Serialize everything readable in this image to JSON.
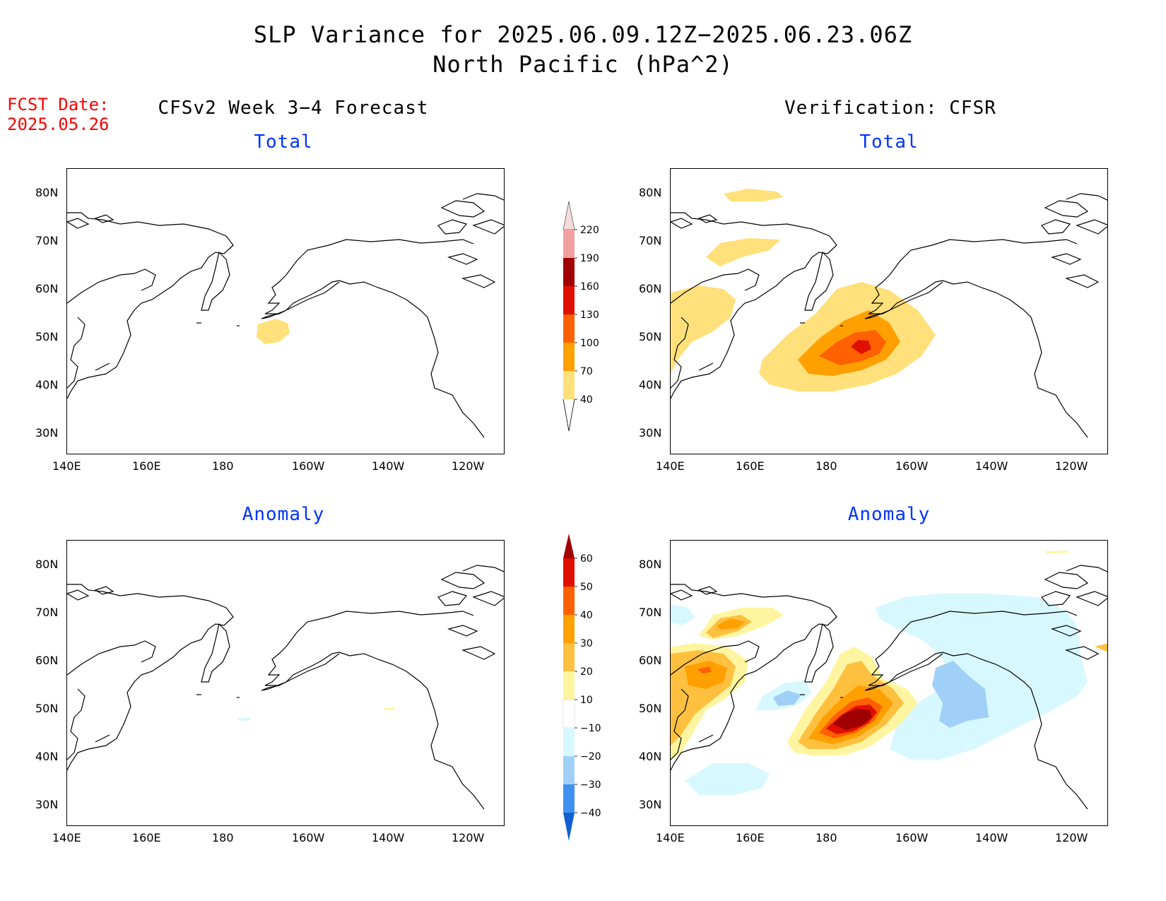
{
  "header": {
    "title_line1": "SLP Variance for 2025.06.09.12Z−2025.06.23.06Z",
    "title_line2": "North Pacific (hPa^2)",
    "fcst_line1": "FCST Date:",
    "fcst_line2": "2025.05.26"
  },
  "columns": {
    "left_title": "CFSv2 Week 3−4 Forecast",
    "right_title": "Verification: CFSR"
  },
  "panels": {
    "top_left_sub": "Total",
    "top_right_sub": "Total",
    "bottom_left_sub": "Anomaly",
    "bottom_right_sub": "Anomaly"
  },
  "axes": {
    "lat_ticks": [
      "80N",
      "70N",
      "60N",
      "50N",
      "40N",
      "30N"
    ],
    "lon_ticks": [
      "140E",
      "160E",
      "180",
      "160W",
      "140W",
      "120W"
    ]
  },
  "colorbars": {
    "total": {
      "labels": [
        "220",
        "190",
        "160",
        "130",
        "100",
        "70",
        "40"
      ],
      "colors": [
        "#f5dcdc",
        "#f0a0a0",
        "#a00000",
        "#e01000",
        "#ff6000",
        "#ffa000",
        "#ffe07a"
      ]
    },
    "anomaly": {
      "labels": [
        "60",
        "50",
        "40",
        "30",
        "20",
        "10",
        "−10",
        "−20",
        "−30",
        "−40"
      ],
      "colors": [
        "#a00000",
        "#e01000",
        "#ff6000",
        "#ffa000",
        "#ffc040",
        "#fff5a0",
        "#ffffff",
        "#d8f8ff",
        "#a0d0f8",
        "#4090f0",
        "#1060d0"
      ]
    }
  },
  "chart_data": {
    "type": "map-contour",
    "region": "North Pacific",
    "lat_range": [
      "25N",
      "85N"
    ],
    "lon_range": [
      "140E",
      "110W"
    ],
    "units": "hPa^2"
  }
}
